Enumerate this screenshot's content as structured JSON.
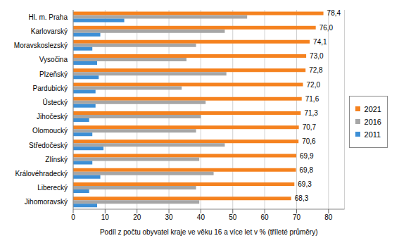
{
  "chart_data": {
    "type": "bar",
    "orientation": "horizontal",
    "x_label": "Podíl z počtu obyvatel kraje ve věku 16 a více let v % (tříleté průměry)",
    "categories": [
      "Hl. m. Praha",
      "Karlovarský",
      "Moravskoslezský",
      "Vysočina",
      "Plzeňský",
      "Pardubický",
      "Ústecký",
      "Jihočeský",
      "Olomoucký",
      "Středočeský",
      "Zlínský",
      "Královéhradecký",
      "Liberecký",
      "Jihomoravský"
    ],
    "series": [
      {
        "name": "2021",
        "color": "#f5821f",
        "values": [
          78.4,
          76.0,
          74.1,
          73.0,
          72.8,
          72.0,
          71.6,
          71.3,
          70.7,
          70.6,
          69.9,
          69.8,
          69.3,
          68.3
        ],
        "value_labels": [
          "78,4",
          "76,0",
          "74,1",
          "73,0",
          "72,8",
          "72,0",
          "71,6",
          "71,3",
          "70,7",
          "70,6",
          "69,9",
          "69,8",
          "69,3",
          "68,3"
        ],
        "data_labels": true
      },
      {
        "name": "2016",
        "color": "#a6a6a6",
        "values": [
          54.5,
          47.5,
          38.5,
          35.5,
          48.0,
          34.0,
          41.5,
          40.0,
          38.5,
          47.5,
          39.5,
          44.0,
          38.5,
          39.5
        ]
      },
      {
        "name": "2011",
        "color": "#3d8fd6",
        "values": [
          16.0,
          8.5,
          6.0,
          7.5,
          8.0,
          7.0,
          7.0,
          5.0,
          6.0,
          9.5,
          6.0,
          8.5,
          5.0,
          7.5
        ]
      }
    ],
    "xlim": [
      0,
      85
    ],
    "xticks": [
      0,
      10,
      20,
      30,
      40,
      50,
      60,
      70,
      80
    ],
    "grid": true,
    "legend": "right"
  }
}
